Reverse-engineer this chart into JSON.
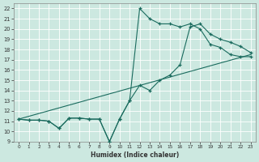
{
  "xlabel": "Humidex (Indice chaleur)",
  "xlim": [
    -0.5,
    23.5
  ],
  "ylim": [
    9,
    22.5
  ],
  "xticks": [
    0,
    1,
    2,
    3,
    4,
    5,
    6,
    7,
    8,
    9,
    10,
    11,
    12,
    13,
    14,
    15,
    16,
    17,
    18,
    19,
    20,
    21,
    22,
    23
  ],
  "yticks": [
    9,
    10,
    11,
    12,
    13,
    14,
    15,
    16,
    17,
    18,
    19,
    20,
    21,
    22
  ],
  "line_color": "#1a6b5e",
  "bg_color": "#cce8e0",
  "grid_color": "#b0d8d0",
  "line1_x": [
    0,
    1,
    2,
    3,
    4,
    5,
    6,
    7,
    8,
    9,
    10,
    11,
    12,
    13,
    14,
    15,
    16,
    17,
    18,
    19,
    20,
    21,
    22,
    23
  ],
  "line1_y": [
    11.2,
    11.1,
    11.1,
    11.0,
    10.3,
    11.3,
    11.3,
    11.2,
    11.2,
    9.0,
    11.2,
    13.0,
    22.0,
    21.0,
    20.5,
    20.5,
    20.2,
    20.5,
    20.0,
    18.5,
    18.2,
    17.5,
    17.3,
    17.3
  ],
  "line2_x": [
    0,
    1,
    2,
    3,
    4,
    5,
    6,
    7,
    8,
    9,
    10,
    11,
    12,
    13,
    14,
    15,
    16,
    17,
    18,
    19,
    20,
    21,
    22,
    23
  ],
  "line2_y": [
    11.2,
    11.1,
    11.1,
    11.0,
    10.3,
    11.3,
    11.3,
    11.2,
    11.2,
    9.0,
    11.2,
    13.0,
    14.5,
    14.0,
    15.0,
    15.5,
    16.5,
    20.2,
    20.5,
    19.5,
    19.0,
    18.7,
    18.3,
    17.7
  ],
  "line3_x": [
    0,
    23
  ],
  "line3_y": [
    11.2,
    17.5
  ]
}
